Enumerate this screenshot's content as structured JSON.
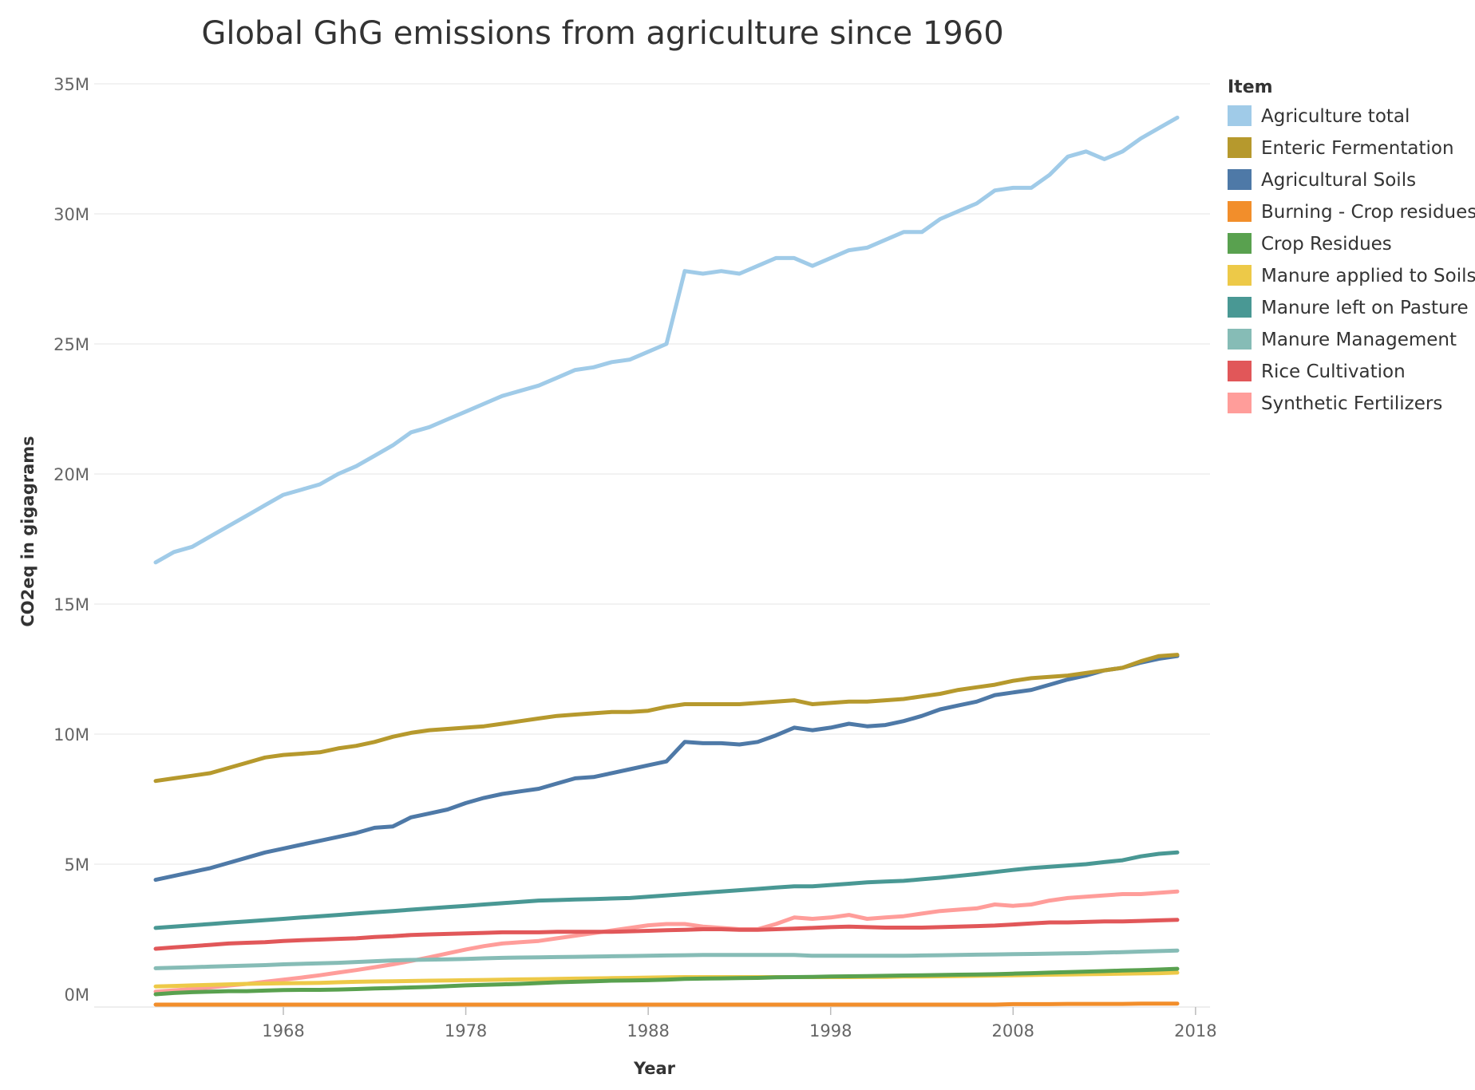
{
  "chart_data": {
    "type": "line",
    "title": "Global GhG emissions from agriculture since 1960",
    "xlabel": "Year",
    "ylabel": "CO2eq in gigagrams",
    "xlim": [
      1961,
      2017
    ],
    "ylim": [
      0,
      35000000
    ],
    "x_ticks": [
      {
        "value": 1968,
        "label": "1968"
      },
      {
        "value": 1978,
        "label": "1978"
      },
      {
        "value": 1988,
        "label": "1988"
      },
      {
        "value": 1998,
        "label": "1998"
      },
      {
        "value": 2008,
        "label": "2008"
      },
      {
        "value": 2018,
        "label": "2018"
      }
    ],
    "y_ticks": [
      {
        "value": 0,
        "label": "0M"
      },
      {
        "value": 5000000,
        "label": "5M"
      },
      {
        "value": 10000000,
        "label": "10M"
      },
      {
        "value": 15000000,
        "label": "15M"
      },
      {
        "value": 20000000,
        "label": "20M"
      },
      {
        "value": 25000000,
        "label": "25M"
      },
      {
        "value": 30000000,
        "label": "30M"
      },
      {
        "value": 35000000,
        "label": "35M"
      }
    ],
    "grid": true,
    "legend": {
      "title": "Item",
      "position": "right"
    },
    "x": [
      1961,
      1962,
      1963,
      1964,
      1965,
      1966,
      1967,
      1968,
      1969,
      1970,
      1971,
      1972,
      1973,
      1974,
      1975,
      1976,
      1977,
      1978,
      1979,
      1980,
      1981,
      1982,
      1983,
      1984,
      1985,
      1986,
      1987,
      1988,
      1989,
      1990,
      1991,
      1992,
      1993,
      1994,
      1995,
      1996,
      1997,
      1998,
      1999,
      2000,
      2001,
      2002,
      2003,
      2004,
      2005,
      2006,
      2007,
      2008,
      2009,
      2010,
      2011,
      2012,
      2013,
      2014,
      2015,
      2016,
      2017
    ],
    "series": [
      {
        "name": "Agriculture total",
        "color": "#a0cbe8",
        "values": [
          16600000,
          17000000,
          17200000,
          17600000,
          18000000,
          18400000,
          18800000,
          19200000,
          19400000,
          19600000,
          20000000,
          20300000,
          20700000,
          21100000,
          21600000,
          21800000,
          22100000,
          22400000,
          22700000,
          23000000,
          23200000,
          23400000,
          23700000,
          24000000,
          24100000,
          24300000,
          24400000,
          24700000,
          25000000,
          27800000,
          27700000,
          27800000,
          27700000,
          28000000,
          28300000,
          28300000,
          28000000,
          28300000,
          28600000,
          28700000,
          29000000,
          29300000,
          29300000,
          29800000,
          30100000,
          30400000,
          30900000,
          31000000,
          31000000,
          31500000,
          32200000,
          32400000,
          32100000,
          32400000,
          32900000,
          33300000,
          33700000
        ]
      },
      {
        "name": "Enteric Fermentation",
        "color": "#b6992d",
        "values": [
          8200000,
          8300000,
          8400000,
          8500000,
          8700000,
          8900000,
          9100000,
          9200000,
          9250000,
          9300000,
          9450000,
          9550000,
          9700000,
          9900000,
          10050000,
          10150000,
          10200000,
          10250000,
          10300000,
          10400000,
          10500000,
          10600000,
          10700000,
          10750000,
          10800000,
          10850000,
          10850000,
          10900000,
          11050000,
          11150000,
          11150000,
          11150000,
          11150000,
          11200000,
          11250000,
          11300000,
          11150000,
          11200000,
          11250000,
          11250000,
          11300000,
          11350000,
          11450000,
          11550000,
          11700000,
          11800000,
          11900000,
          12050000,
          12150000,
          12200000,
          12250000,
          12350000,
          12450000,
          12550000,
          12800000,
          13000000,
          13050000
        ]
      },
      {
        "name": "Agricultural Soils",
        "color": "#4e79a7",
        "values": [
          4400000,
          4550000,
          4700000,
          4850000,
          5050000,
          5250000,
          5450000,
          5600000,
          5750000,
          5900000,
          6050000,
          6200000,
          6400000,
          6450000,
          6800000,
          6950000,
          7100000,
          7350000,
          7550000,
          7700000,
          7800000,
          7900000,
          8100000,
          8300000,
          8350000,
          8500000,
          8650000,
          8800000,
          8950000,
          9700000,
          9650000,
          9650000,
          9600000,
          9700000,
          9950000,
          10250000,
          10150000,
          10250000,
          10400000,
          10300000,
          10350000,
          10500000,
          10700000,
          10950000,
          11100000,
          11250000,
          11500000,
          11600000,
          11700000,
          11900000,
          12100000,
          12250000,
          12450000,
          12550000,
          12750000,
          12900000,
          13000000
        ]
      },
      {
        "name": "Burning - Crop residues",
        "color": "#f28e2b",
        "values": [
          -400000,
          -400000,
          -400000,
          -400000,
          -400000,
          -400000,
          -400000,
          -400000,
          -400000,
          -400000,
          -400000,
          -400000,
          -400000,
          -400000,
          -400000,
          -400000,
          -400000,
          -400000,
          -400000,
          -400000,
          -400000,
          -400000,
          -400000,
          -400000,
          -400000,
          -400000,
          -400000,
          -400000,
          -400000,
          -400000,
          -400000,
          -400000,
          -400000,
          -400000,
          -400000,
          -400000,
          -400000,
          -400000,
          -400000,
          -400000,
          -400000,
          -400000,
          -400000,
          -400000,
          -400000,
          -400000,
          -400000,
          -380000,
          -380000,
          -380000,
          -370000,
          -370000,
          -370000,
          -370000,
          -360000,
          -360000,
          -360000
        ]
      },
      {
        "name": "Crop Residues",
        "color": "#59a14f",
        "values": [
          0,
          50000,
          80000,
          100000,
          120000,
          120000,
          140000,
          160000,
          170000,
          170000,
          180000,
          200000,
          220000,
          240000,
          260000,
          280000,
          310000,
          340000,
          360000,
          380000,
          400000,
          430000,
          460000,
          480000,
          500000,
          520000,
          530000,
          540000,
          560000,
          590000,
          600000,
          610000,
          620000,
          630000,
          650000,
          660000,
          670000,
          680000,
          690000,
          700000,
          710000,
          720000,
          730000,
          740000,
          750000,
          760000,
          770000,
          790000,
          810000,
          830000,
          850000,
          870000,
          890000,
          910000,
          930000,
          950000,
          980000
        ]
      },
      {
        "name": "Manure applied to Soils",
        "color": "#edc948",
        "values": [
          300000,
          320000,
          340000,
          360000,
          380000,
          400000,
          410000,
          420000,
          430000,
          440000,
          460000,
          480000,
          490000,
          500000,
          510000,
          520000,
          530000,
          540000,
          550000,
          560000,
          570000,
          580000,
          590000,
          600000,
          610000,
          620000,
          630000,
          640000,
          650000,
          660000,
          660000,
          660000,
          660000,
          660000,
          660000,
          660000,
          660000,
          660000,
          660000,
          670000,
          670000,
          680000,
          680000,
          690000,
          700000,
          710000,
          720000,
          730000,
          740000,
          750000,
          760000,
          770000,
          780000,
          790000,
          800000,
          810000,
          830000
        ]
      },
      {
        "name": "Manure left on Pasture",
        "color": "#499894",
        "values": [
          2550000,
          2600000,
          2650000,
          2700000,
          2750000,
          2800000,
          2850000,
          2900000,
          2950000,
          3000000,
          3050000,
          3100000,
          3150000,
          3200000,
          3250000,
          3300000,
          3350000,
          3400000,
          3450000,
          3500000,
          3550000,
          3600000,
          3620000,
          3640000,
          3660000,
          3680000,
          3700000,
          3750000,
          3800000,
          3850000,
          3900000,
          3950000,
          4000000,
          4050000,
          4100000,
          4150000,
          4150000,
          4200000,
          4250000,
          4300000,
          4330000,
          4360000,
          4420000,
          4480000,
          4550000,
          4620000,
          4700000,
          4780000,
          4850000,
          4900000,
          4950000,
          5000000,
          5080000,
          5150000,
          5300000,
          5400000,
          5450000
        ]
      },
      {
        "name": "Manure Management",
        "color": "#86bcb6",
        "values": [
          1000000,
          1020000,
          1040000,
          1060000,
          1080000,
          1100000,
          1120000,
          1150000,
          1170000,
          1190000,
          1210000,
          1240000,
          1270000,
          1300000,
          1320000,
          1330000,
          1340000,
          1360000,
          1380000,
          1400000,
          1410000,
          1420000,
          1430000,
          1440000,
          1450000,
          1460000,
          1470000,
          1480000,
          1490000,
          1500000,
          1510000,
          1510000,
          1510000,
          1510000,
          1510000,
          1510000,
          1480000,
          1480000,
          1480000,
          1480000,
          1480000,
          1480000,
          1490000,
          1500000,
          1510000,
          1520000,
          1530000,
          1540000,
          1550000,
          1560000,
          1570000,
          1580000,
          1600000,
          1620000,
          1640000,
          1660000,
          1680000
        ]
      },
      {
        "name": "Rice Cultivation",
        "color": "#e15759",
        "values": [
          1750000,
          1800000,
          1850000,
          1900000,
          1950000,
          1980000,
          2000000,
          2050000,
          2080000,
          2100000,
          2130000,
          2150000,
          2200000,
          2230000,
          2280000,
          2300000,
          2320000,
          2340000,
          2360000,
          2380000,
          2380000,
          2380000,
          2400000,
          2400000,
          2400000,
          2400000,
          2420000,
          2440000,
          2460000,
          2480000,
          2500000,
          2500000,
          2480000,
          2480000,
          2500000,
          2520000,
          2550000,
          2580000,
          2600000,
          2580000,
          2560000,
          2560000,
          2560000,
          2580000,
          2600000,
          2620000,
          2640000,
          2680000,
          2720000,
          2760000,
          2760000,
          2780000,
          2800000,
          2800000,
          2820000,
          2840000,
          2860000
        ]
      },
      {
        "name": "Synthetic Fertilizers",
        "color": "#ff9d9a",
        "values": [
          100000,
          150000,
          200000,
          260000,
          330000,
          400000,
          480000,
          560000,
          640000,
          730000,
          830000,
          930000,
          1040000,
          1150000,
          1280000,
          1420000,
          1570000,
          1720000,
          1850000,
          1950000,
          2000000,
          2050000,
          2150000,
          2250000,
          2350000,
          2450000,
          2550000,
          2650000,
          2700000,
          2700000,
          2600000,
          2550000,
          2500000,
          2500000,
          2700000,
          2950000,
          2900000,
          2950000,
          3050000,
          2900000,
          2950000,
          3000000,
          3100000,
          3200000,
          3250000,
          3300000,
          3450000,
          3400000,
          3450000,
          3600000,
          3700000,
          3750000,
          3800000,
          3850000,
          3850000,
          3900000,
          3950000
        ]
      }
    ]
  }
}
